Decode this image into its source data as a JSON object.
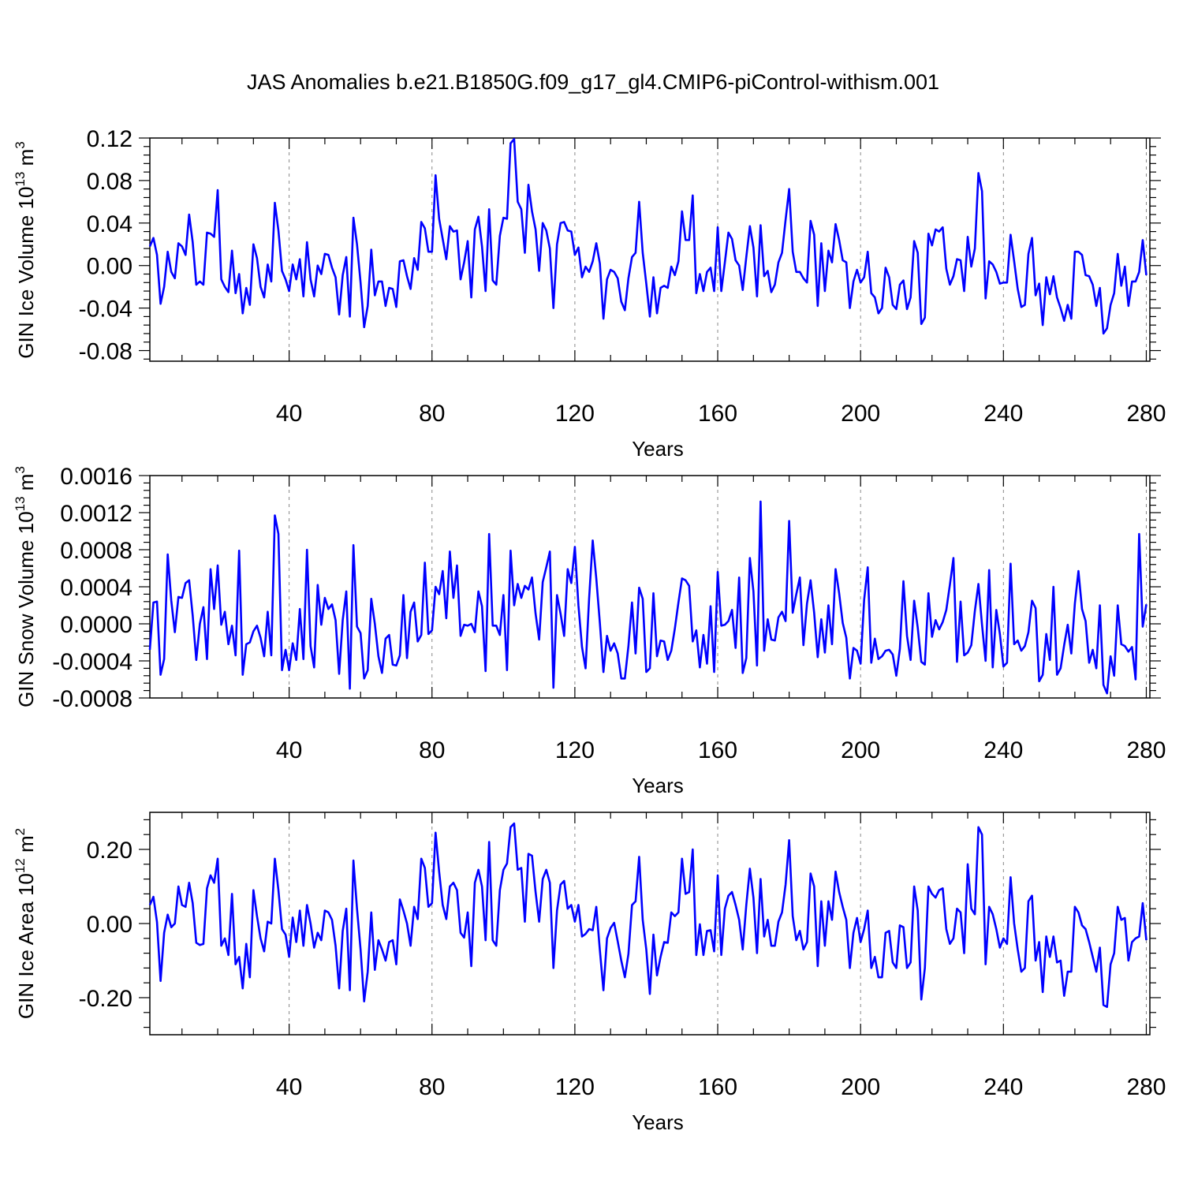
{
  "figure": {
    "title": "JAS Anomalies b.e21.B1850G.f09_g17_gl4.CMIP6-piControl-withism.001"
  },
  "chart_data": [
    {
      "type": "line",
      "title": "JAS Anomalies b.e21.B1850G.f09_g17_gl4.CMIP6-piControl-withism.001",
      "xlabel": "Years",
      "ylabel_main": "GIN Ice Volume 10",
      "ylabel_exp": "13",
      "ylabel_unit": " m",
      "ylabel_unit_exp": "3",
      "xlim": [
        1,
        281
      ],
      "ylim": [
        -0.09,
        0.12
      ],
      "x_ticks": [
        40,
        80,
        120,
        160,
        200,
        240,
        280
      ],
      "x_tick_labels": [
        "40",
        "80",
        "120",
        "160",
        "200",
        "240",
        "280"
      ],
      "y_ticks": [
        -0.08,
        -0.04,
        0.0,
        0.04,
        0.08,
        0.12
      ],
      "y_tick_labels": [
        "-0.08",
        "-0.04",
        "0.00",
        "0.04",
        "0.08",
        "0.12"
      ],
      "line_color": "#0000ff",
      "series": [
        {
          "name": "GIN Ice Volume",
          "x_start": 1,
          "values": [
            0.018,
            0.026,
            0.01,
            -0.036,
            -0.02,
            0.013,
            -0.006,
            -0.012,
            0.021,
            0.018,
            0.01,
            0.048,
            0.022,
            -0.018,
            -0.015,
            -0.018,
            0.031,
            0.03,
            0.027,
            0.071,
            -0.013,
            -0.02,
            -0.025,
            0.014,
            -0.026,
            -0.008,
            -0.045,
            -0.021,
            -0.037,
            0.02,
            0.007,
            -0.02,
            -0.03,
            0.001,
            -0.015,
            0.059,
            0.033,
            -0.005,
            -0.013,
            -0.024,
            0.001,
            -0.013,
            0.006,
            -0.029,
            0.022,
            -0.013,
            -0.029,
            0.0,
            -0.008,
            0.011,
            0.01,
            -0.002,
            -0.011,
            -0.046,
            -0.009,
            0.008,
            -0.048,
            0.045,
            0.02,
            -0.016,
            -0.058,
            -0.038,
            0.015,
            -0.028,
            -0.015,
            -0.015,
            -0.038,
            -0.021,
            -0.022,
            -0.039,
            0.004,
            0.005,
            -0.01,
            -0.022,
            0.007,
            -0.004,
            0.041,
            0.035,
            0.013,
            0.013,
            0.085,
            0.044,
            0.025,
            0.006,
            0.037,
            0.032,
            0.033,
            -0.013,
            0.003,
            0.023,
            -0.03,
            0.034,
            0.046,
            0.018,
            -0.024,
            0.053,
            -0.014,
            -0.018,
            0.028,
            0.045,
            0.044,
            0.115,
            0.119,
            0.06,
            0.053,
            0.012,
            0.076,
            0.051,
            0.034,
            -0.005,
            0.04,
            0.033,
            0.016,
            -0.04,
            0.02,
            0.04,
            0.041,
            0.033,
            0.032,
            0.01,
            0.017,
            -0.011,
            -0.001,
            -0.006,
            0.004,
            0.021,
            0.002,
            -0.05,
            -0.013,
            -0.004,
            -0.006,
            -0.012,
            -0.034,
            -0.042,
            -0.012,
            0.008,
            0.012,
            0.06,
            0.012,
            -0.017,
            -0.048,
            -0.011,
            -0.045,
            -0.021,
            -0.019,
            -0.021,
            -0.001,
            -0.009,
            0.004,
            0.051,
            0.024,
            0.024,
            0.066,
            -0.026,
            -0.008,
            -0.024,
            -0.006,
            -0.002,
            -0.024,
            0.036,
            -0.024,
            0.003,
            0.031,
            0.025,
            0.005,
            0.0,
            -0.023,
            0.008,
            0.037,
            0.017,
            -0.029,
            0.038,
            -0.01,
            -0.005,
            -0.025,
            -0.018,
            0.003,
            0.012,
            0.043,
            0.072,
            0.013,
            -0.006,
            -0.006,
            -0.012,
            -0.016,
            0.042,
            0.029,
            -0.038,
            0.021,
            -0.024,
            0.014,
            0.003,
            0.039,
            0.024,
            0.005,
            0.003,
            -0.04,
            -0.015,
            -0.004,
            -0.016,
            -0.011,
            0.013,
            -0.026,
            -0.03,
            -0.045,
            -0.04,
            -0.002,
            -0.011,
            -0.037,
            -0.041,
            -0.018,
            -0.014,
            -0.041,
            -0.03,
            0.023,
            0.012,
            -0.055,
            -0.049,
            0.03,
            0.019,
            0.034,
            0.032,
            0.036,
            -0.003,
            -0.018,
            -0.01,
            0.006,
            0.005,
            -0.024,
            0.027,
            -0.001,
            0.016,
            0.087,
            0.07,
            -0.031,
            0.004,
            0.001,
            -0.006,
            -0.017,
            -0.016,
            -0.016,
            0.029,
            0.004,
            -0.022,
            -0.039,
            -0.037,
            0.011,
            0.026,
            -0.028,
            -0.017,
            -0.056,
            -0.011,
            -0.027,
            -0.01,
            -0.03,
            -0.04,
            -0.052,
            -0.037,
            -0.05,
            0.013,
            0.013,
            0.01,
            -0.009,
            -0.01,
            -0.018,
            -0.038,
            -0.021,
            -0.064,
            -0.059,
            -0.037,
            -0.026,
            0.011,
            -0.019,
            -0.001,
            -0.038,
            -0.015,
            -0.015,
            -0.006,
            0.024,
            -0.009
          ]
        }
      ]
    },
    {
      "type": "line",
      "xlabel": "Years",
      "ylabel_main": "GIN Snow Volume 10",
      "ylabel_exp": "13",
      "ylabel_unit": " m",
      "ylabel_unit_exp": "3",
      "xlim": [
        1,
        281
      ],
      "ylim": [
        -0.0008,
        0.0016
      ],
      "x_ticks": [
        40,
        80,
        120,
        160,
        200,
        240,
        280
      ],
      "x_tick_labels": [
        "40",
        "80",
        "120",
        "160",
        "200",
        "240",
        "280"
      ],
      "y_ticks": [
        -0.0008,
        -0.0004,
        0.0,
        0.0004,
        0.0008,
        0.0012,
        0.0016
      ],
      "y_tick_labels": [
        "-0.0008",
        "-0.0004",
        "0.0000",
        "0.0004",
        "0.0008",
        "0.0012",
        "0.0016"
      ],
      "line_color": "#0000ff",
      "series": [
        {
          "name": "GIN Snow Volume",
          "x_start": 1,
          "values": [
            -0.00028,
            0.00023,
            0.00024,
            -0.00055,
            -0.00038,
            0.00075,
            0.00025,
            -9e-05,
            0.00029,
            0.00028,
            0.00044,
            0.00047,
            9e-05,
            -0.00039,
            0.0,
            0.00018,
            -0.00038,
            0.00059,
            0.00016,
            0.00063,
            -1e-05,
            0.00013,
            -0.00022,
            -2e-05,
            -0.00034,
            0.00079,
            -0.00055,
            -0.00022,
            -0.0002,
            -8e-05,
            -2e-05,
            -0.00015,
            -0.00035,
            0.00013,
            -0.00034,
            0.00117,
            0.00097,
            -0.0005,
            -0.00028,
            -0.0005,
            -0.00021,
            -0.00039,
            0.00016,
            -0.00038,
            0.0008,
            -0.00024,
            -0.00047,
            0.00042,
            -1e-05,
            0.00028,
            0.00016,
            0.00021,
            4e-05,
            -0.00054,
            4e-05,
            0.00035,
            -0.0007,
            0.00085,
            -3e-05,
            -0.0001,
            -0.00059,
            -0.0005,
            0.00027,
            0.0,
            -0.00035,
            -0.00053,
            -0.00016,
            -0.00012,
            -0.00044,
            -0.00045,
            -0.00034,
            0.00031,
            -0.00037,
            0.00013,
            0.00023,
            -0.00019,
            -0.00012,
            0.00066,
            -0.00011,
            -7e-05,
            0.0004,
            0.00032,
            0.00057,
            6e-05,
            0.00078,
            0.00028,
            0.00063,
            -0.00013,
            -1e-05,
            -2e-05,
            0.0,
            -9e-05,
            0.00035,
            0.00019,
            -0.00051,
            0.00097,
            -2e-05,
            -2e-05,
            -0.00012,
            0.00031,
            -0.0005,
            0.00079,
            0.0002,
            0.00043,
            0.00028,
            0.00041,
            0.00037,
            0.0005,
            0.00011,
            -0.00017,
            0.00045,
            0.00061,
            0.00078,
            -0.00069,
            0.00031,
            0.00011,
            -0.00013,
            0.00059,
            0.00044,
            0.00083,
            0.0002,
            -0.00025,
            -0.00048,
            0.00028,
            0.0009,
            0.00049,
            1e-05,
            -0.00052,
            -0.00013,
            -0.00029,
            -0.00021,
            -0.00032,
            -0.00059,
            -0.00059,
            -0.00024,
            0.00023,
            -0.00032,
            0.00039,
            0.00027,
            -0.00052,
            -0.00048,
            0.00033,
            -0.00035,
            -0.00018,
            -0.00019,
            -0.00039,
            -0.00029,
            -5e-05,
            0.00023,
            0.00049,
            0.00047,
            0.00041,
            -0.00019,
            -7e-05,
            -0.00047,
            -0.00012,
            -0.00043,
            0.00019,
            -0.00052,
            0.00056,
            -2e-05,
            -1e-05,
            3e-05,
            0.00015,
            -0.00026,
            0.0005,
            -0.00053,
            -0.00037,
            0.00071,
            0.00035,
            -0.00045,
            0.00132,
            -0.00029,
            5e-05,
            -0.00017,
            -0.00018,
            7e-05,
            0.00013,
            3e-05,
            0.00111,
            0.00012,
            0.00032,
            0.0005,
            -0.00023,
            0.00022,
            0.00047,
            0.00012,
            -0.00036,
            5e-05,
            -0.00031,
            0.0002,
            -0.00022,
            0.00059,
            0.00033,
            1e-05,
            -0.00015,
            -0.00059,
            -0.00026,
            -0.00029,
            -0.00043,
            0.00026,
            0.00061,
            -0.00042,
            -0.00016,
            -0.00038,
            -0.00035,
            -0.00029,
            -0.00028,
            -0.00033,
            -0.00056,
            -0.00027,
            0.00046,
            -0.00013,
            -0.00039,
            0.00025,
            -4e-05,
            -0.00041,
            -0.00044,
            0.00033,
            -0.00014,
            4e-05,
            -6e-05,
            2e-05,
            0.00015,
            0.00042,
            0.00071,
            -0.00041,
            0.00024,
            -0.00034,
            -0.00031,
            -0.00023,
            0.00014,
            0.00043,
            -1e-05,
            -0.0004,
            0.00058,
            -0.00047,
            0.00015,
            -0.00011,
            -0.00046,
            -0.00042,
            0.00065,
            -0.00022,
            -0.00018,
            -0.00029,
            -0.00024,
            -9e-05,
            0.00025,
            0.00017,
            -0.00062,
            -0.00055,
            -0.00011,
            -0.00039,
            0.0004,
            -0.00055,
            -0.00048,
            -0.00023,
            -1e-05,
            -0.00032,
            0.00022,
            0.00057,
            0.00016,
            3e-05,
            -0.00042,
            -0.00028,
            -0.00048,
            0.0002,
            -0.00066,
            -0.00075,
            -0.00035,
            -0.00056,
            0.0002,
            -0.00022,
            -0.00024,
            -0.0003,
            -0.00025,
            -0.0006,
            0.00097,
            -3e-05,
            0.00021
          ]
        }
      ]
    },
    {
      "type": "line",
      "xlabel": "Years",
      "ylabel_main": "GIN Ice Area 10",
      "ylabel_exp": "12",
      "ylabel_unit": " m",
      "ylabel_unit_exp": "2",
      "xlim": [
        1,
        281
      ],
      "ylim": [
        -0.3,
        0.3
      ],
      "x_ticks": [
        40,
        80,
        120,
        160,
        200,
        240,
        280
      ],
      "x_tick_labels": [
        "40",
        "80",
        "120",
        "160",
        "200",
        "240",
        "280"
      ],
      "y_ticks": [
        -0.2,
        0.0,
        0.2
      ],
      "y_tick_labels": [
        "-0.20",
        "0.00",
        "0.20"
      ],
      "line_color": "#0000ff",
      "series": [
        {
          "name": "GIN Ice Area",
          "x_start": 1,
          "values": [
            0.05,
            0.072,
            0.004,
            -0.155,
            -0.025,
            0.024,
            -0.01,
            0.0,
            0.1,
            0.05,
            0.045,
            0.11,
            0.055,
            -0.052,
            -0.058,
            -0.055,
            0.095,
            0.13,
            0.11,
            0.175,
            -0.06,
            -0.04,
            -0.085,
            0.08,
            -0.11,
            -0.09,
            -0.175,
            -0.055,
            -0.145,
            0.09,
            0.02,
            -0.04,
            -0.075,
            0.005,
            0.0,
            0.175,
            0.09,
            -0.015,
            -0.03,
            -0.09,
            0.016,
            -0.05,
            0.035,
            -0.06,
            0.05,
            0.0,
            -0.065,
            -0.025,
            -0.045,
            0.035,
            0.03,
            0.01,
            -0.06,
            -0.175,
            -0.02,
            0.04,
            -0.18,
            0.17,
            0.04,
            -0.07,
            -0.21,
            -0.13,
            0.03,
            -0.125,
            -0.045,
            -0.07,
            -0.1,
            -0.05,
            -0.045,
            -0.11,
            0.065,
            0.035,
            0.0,
            -0.06,
            0.045,
            0.012,
            0.175,
            0.15,
            0.045,
            0.055,
            0.245,
            0.14,
            0.05,
            0.012,
            0.1,
            0.11,
            0.09,
            -0.025,
            -0.038,
            0.03,
            -0.115,
            0.11,
            0.145,
            0.1,
            -0.045,
            0.22,
            -0.045,
            -0.06,
            0.09,
            0.145,
            0.162,
            0.26,
            0.27,
            0.145,
            0.15,
            0.005,
            0.188,
            0.183,
            0.085,
            0.005,
            0.12,
            0.145,
            0.11,
            -0.12,
            0.035,
            0.105,
            0.115,
            0.04,
            0.05,
            0.005,
            0.05,
            -0.035,
            -0.028,
            -0.015,
            -0.018,
            0.045,
            -0.072,
            -0.18,
            -0.04,
            -0.012,
            0.002,
            -0.048,
            -0.1,
            -0.145,
            -0.082,
            0.05,
            0.06,
            0.18,
            0.01,
            -0.07,
            -0.19,
            -0.03,
            -0.14,
            -0.09,
            -0.05,
            -0.052,
            0.03,
            0.02,
            0.03,
            0.175,
            0.08,
            0.085,
            0.2,
            -0.085,
            -0.002,
            -0.085,
            -0.02,
            -0.018,
            -0.075,
            0.13,
            -0.085,
            0.04,
            0.075,
            0.085,
            0.05,
            0.01,
            -0.07,
            0.05,
            0.148,
            0.07,
            -0.08,
            0.12,
            -0.035,
            0.01,
            -0.06,
            -0.06,
            0.005,
            0.03,
            0.105,
            0.225,
            0.02,
            -0.045,
            -0.02,
            -0.07,
            -0.05,
            0.135,
            0.1,
            -0.115,
            0.06,
            -0.06,
            0.06,
            0.01,
            0.14,
            0.085,
            0.045,
            0.01,
            -0.12,
            -0.025,
            0.015,
            -0.05,
            -0.015,
            0.035,
            -0.12,
            -0.09,
            -0.145,
            -0.145,
            -0.025,
            -0.02,
            -0.105,
            -0.12,
            -0.005,
            -0.01,
            -0.12,
            -0.105,
            0.1,
            0.035,
            -0.205,
            -0.12,
            0.1,
            0.08,
            0.07,
            0.09,
            0.095,
            -0.015,
            -0.055,
            -0.04,
            0.04,
            0.03,
            -0.08,
            0.16,
            0.04,
            0.025,
            0.26,
            0.24,
            -0.11,
            0.045,
            0.025,
            -0.015,
            -0.065,
            -0.04,
            -0.055,
            0.125,
            0.0,
            -0.07,
            -0.13,
            -0.12,
            0.06,
            0.075,
            -0.1,
            -0.05,
            -0.185,
            -0.035,
            -0.09,
            -0.035,
            -0.105,
            -0.1,
            -0.195,
            -0.13,
            -0.13,
            0.045,
            0.03,
            -0.005,
            -0.015,
            -0.05,
            -0.09,
            -0.13,
            -0.065,
            -0.22,
            -0.225,
            -0.11,
            -0.08,
            0.045,
            0.01,
            0.015,
            -0.1,
            -0.05,
            -0.04,
            -0.035,
            0.055,
            -0.045
          ]
        }
      ]
    }
  ]
}
